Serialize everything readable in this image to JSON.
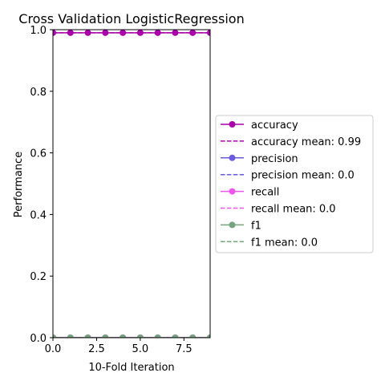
{
  "chart_data": {
    "type": "line",
    "title": "Cross Validation LogisticRegression",
    "xlabel": "10-Fold Iteration",
    "ylabel": "Performance",
    "xlim": [
      0,
      9
    ],
    "ylim": [
      0,
      1.0
    ],
    "xticks": [
      0,
      2.5,
      5,
      7.5
    ],
    "xtick_labels": [
      "0.0",
      "2.5",
      "5.0",
      "7.5"
    ],
    "yticks": [
      0,
      0.2,
      0.4,
      0.6,
      0.8,
      1.0
    ],
    "ytick_labels": [
      "0.0",
      "0.2",
      "0.4",
      "0.6",
      "0.8",
      "1.0"
    ],
    "grid": false,
    "legend_position": "center-right outside",
    "x": [
      0,
      1,
      2,
      3,
      4,
      5,
      6,
      7,
      8,
      9
    ],
    "series": [
      {
        "name": "accuracy",
        "color": "#aa00aa",
        "values": [
          0.99,
          0.99,
          0.99,
          0.99,
          0.99,
          0.99,
          0.99,
          0.99,
          0.99,
          0.99
        ]
      },
      {
        "name": "precision",
        "color": "#6a5be0",
        "values": [
          0,
          0,
          0,
          0,
          0,
          0,
          0,
          0,
          0,
          0
        ]
      },
      {
        "name": "recall",
        "color": "#ee55ee",
        "values": [
          0,
          0,
          0,
          0,
          0,
          0,
          0,
          0,
          0,
          0
        ]
      },
      {
        "name": "f1",
        "color": "#76a47e",
        "values": [
          0,
          0,
          0,
          0,
          0,
          0,
          0,
          0,
          0,
          0
        ]
      }
    ],
    "mean_lines": [
      {
        "name": "accuracy mean: 0.99",
        "color": "#aa00aa",
        "value": 0.99
      },
      {
        "name": "precision mean: 0.0",
        "color": "#6a5be0",
        "value": 0.0
      },
      {
        "name": "recall mean: 0.0",
        "color": "#ee55ee",
        "value": 0.0
      },
      {
        "name": "f1 mean: 0.0",
        "color": "#76a47e",
        "value": 0.0
      }
    ],
    "legend": [
      {
        "label": "accuracy",
        "color": "#aa00aa",
        "style": "solid-marker"
      },
      {
        "label": "accuracy mean: 0.99",
        "color": "#aa00aa",
        "style": "dashed"
      },
      {
        "label": "precision",
        "color": "#6a5be0",
        "style": "solid-marker"
      },
      {
        "label": "precision mean: 0.0",
        "color": "#6a5be0",
        "style": "dashed"
      },
      {
        "label": "recall",
        "color": "#ee55ee",
        "style": "solid-marker"
      },
      {
        "label": "recall mean: 0.0",
        "color": "#ee55ee",
        "style": "dashed"
      },
      {
        "label": "f1",
        "color": "#76a47e",
        "style": "solid-marker"
      },
      {
        "label": "f1 mean: 0.0",
        "color": "#76a47e",
        "style": "dashed"
      }
    ]
  }
}
